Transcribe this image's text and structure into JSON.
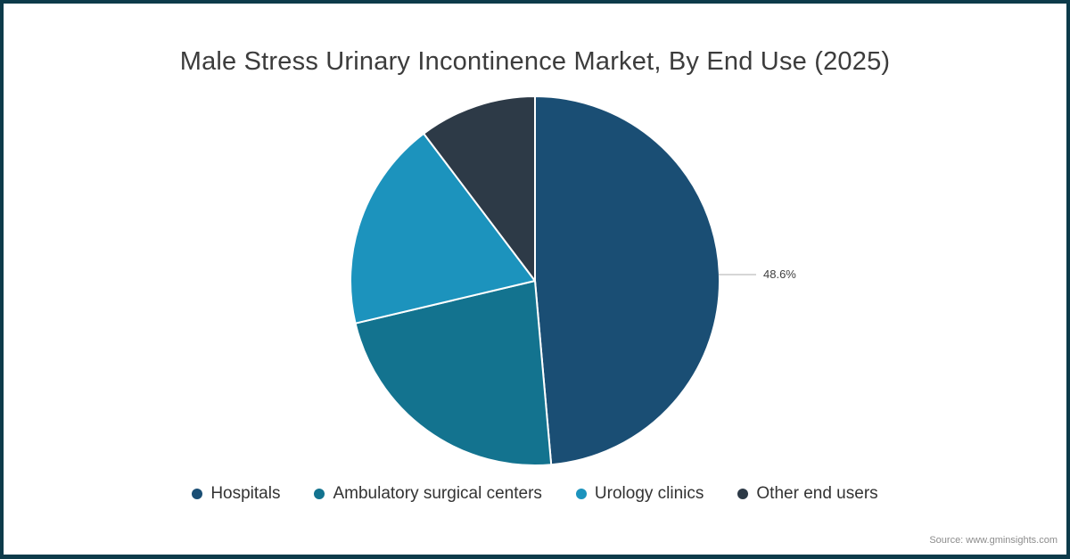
{
  "chart_data": {
    "type": "pie",
    "title": "Male Stress Urinary Incontinence Market, By End Use (2025)",
    "categories": [
      "Hospitals",
      "Ambulatory surgical centers",
      "Urology clinics",
      "Other end users"
    ],
    "values": [
      48.6,
      22.7,
      18.4,
      10.3
    ],
    "unit": "%",
    "colors": [
      "#1a4e74",
      "#13738f",
      "#1c93bd",
      "#2d3a47"
    ],
    "start_angle_deg": 0,
    "direction": "clockwise",
    "visible_data_label": "48.6%",
    "labeled_slice": "Hospitals",
    "legend_position": "bottom",
    "slice_stroke_color": "#ffffff"
  },
  "source_note": "Source: www.gminsights.com",
  "frame_color": "#0d3b4a"
}
